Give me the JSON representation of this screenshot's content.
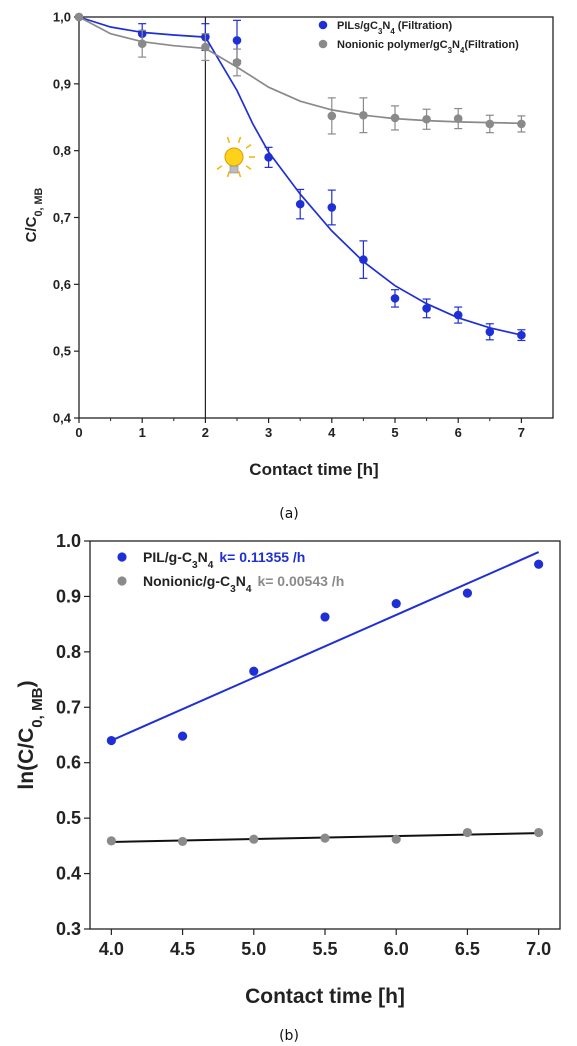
{
  "chart_data": [
    {
      "type": "scatter",
      "panel_caption": "(a)",
      "title": "",
      "xlabel": "Contact time [h]",
      "ylabel_main": "C/C",
      "ylabel_sub": "0, MB",
      "xlim": [
        0,
        7.5
      ],
      "ylim": [
        0.4,
        1.0
      ],
      "xticks": [
        "0",
        "1",
        "2",
        "3",
        "4",
        "5",
        "6",
        "7"
      ],
      "yticks": [
        "0,4",
        "0,5",
        "0,6",
        "0,7",
        "0,8",
        "0,9",
        "1,0"
      ],
      "legend_position": "top-right",
      "light_on_time": 2,
      "series": [
        {
          "name_parts": [
            "PILs/gC",
            "3",
            "N",
            "4",
            " (Filtration)"
          ],
          "color": "#1f2fd6",
          "x": [
            0,
            1,
            2,
            2.5,
            3,
            3.5,
            4,
            4.5,
            5,
            5.5,
            6,
            6.5,
            7
          ],
          "y": [
            1.0,
            0.975,
            0.97,
            0.965,
            0.79,
            0.72,
            0.715,
            0.637,
            0.579,
            0.564,
            0.554,
            0.529,
            0.524
          ],
          "err": [
            0.0,
            0.015,
            0.02,
            0.03,
            0.015,
            0.022,
            0.026,
            0.028,
            0.013,
            0.014,
            0.012,
            0.012,
            0.008
          ],
          "fit_x": [
            0,
            0.5,
            1,
            1.5,
            2,
            2.25,
            2.5,
            2.75,
            3,
            3.5,
            4,
            4.5,
            5,
            5.5,
            6,
            6.5,
            7
          ],
          "fit_y": [
            1.0,
            0.985,
            0.977,
            0.973,
            0.97,
            0.93,
            0.89,
            0.84,
            0.798,
            0.735,
            0.68,
            0.634,
            0.598,
            0.571,
            0.55,
            0.535,
            0.524
          ]
        },
        {
          "name_parts": [
            "Nonionic polymer/gC",
            "3",
            "N",
            "4",
            "(Filtration)"
          ],
          "color": "#8a8a8a",
          "x": [
            0,
            1,
            2,
            2.5,
            4,
            4.5,
            5,
            5.5,
            6,
            6.5,
            7
          ],
          "y": [
            1.0,
            0.96,
            0.955,
            0.932,
            0.852,
            0.853,
            0.849,
            0.847,
            0.848,
            0.84,
            0.84
          ],
          "err": [
            0.0,
            0.02,
            0.02,
            0.02,
            0.027,
            0.026,
            0.018,
            0.015,
            0.015,
            0.013,
            0.012
          ],
          "fit_x": [
            0,
            0.5,
            1,
            1.5,
            2,
            2.5,
            3,
            3.5,
            4,
            4.5,
            5,
            5.5,
            6,
            6.5,
            7
          ],
          "fit_y": [
            1.0,
            0.975,
            0.963,
            0.957,
            0.953,
            0.925,
            0.895,
            0.874,
            0.861,
            0.853,
            0.848,
            0.845,
            0.843,
            0.842,
            0.841
          ]
        }
      ]
    },
    {
      "type": "scatter",
      "panel_caption": "(b)",
      "title": "",
      "xlabel": "Contact time [h]",
      "ylabel_main": "ln(C/C",
      "ylabel_sub": "0, MB",
      "ylabel_end": ")",
      "xlim": [
        3.85,
        7.15
      ],
      "ylim": [
        0.3,
        1.0
      ],
      "xticks": [
        "4.0",
        "4.5",
        "5.0",
        "5.5",
        "6.0",
        "6.5",
        "7.0"
      ],
      "yticks": [
        "0.3",
        "0.4",
        "0.5",
        "0.6",
        "0.7",
        "0.8",
        "0.9",
        "1.0"
      ],
      "legend_position": "top-left",
      "series": [
        {
          "name_parts": [
            "PIL/g-C",
            "3",
            "N",
            "4"
          ],
          "k_label": "k= 0.11355 /h",
          "color": "#1f2fd6",
          "line_color": "#1f2fd6",
          "x": [
            4.0,
            4.5,
            5.0,
            5.5,
            6.0,
            6.5,
            7.0
          ],
          "y": [
            0.64,
            0.648,
            0.765,
            0.863,
            0.887,
            0.906,
            0.958
          ],
          "fit_x": [
            4.0,
            7.0
          ],
          "fit_y": [
            0.64,
            0.98
          ]
        },
        {
          "name_parts": [
            "Nonionic/g-C",
            "3",
            "N",
            "4"
          ],
          "k_label": "k= 0.00543 /h",
          "color": "#8a8a8a",
          "line_color": "#111111",
          "x": [
            4.0,
            4.5,
            5.0,
            5.5,
            6.0,
            6.5,
            7.0
          ],
          "y": [
            0.459,
            0.458,
            0.462,
            0.464,
            0.462,
            0.474,
            0.474
          ],
          "fit_x": [
            4.0,
            7.0
          ],
          "fit_y": [
            0.457,
            0.473
          ]
        }
      ]
    }
  ]
}
